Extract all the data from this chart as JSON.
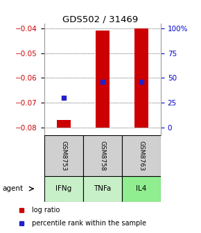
{
  "title": "GDS502 / 31469",
  "samples": [
    "GSM8753",
    "GSM8758",
    "GSM8763"
  ],
  "agents": [
    "IFNg",
    "TNFa",
    "IL4"
  ],
  "agent_colors": [
    "#c8f0c8",
    "#c8f0c8",
    "#90ee90"
  ],
  "ylim_left": [
    -0.083,
    -0.038
  ],
  "yticks_left": [
    -0.08,
    -0.07,
    -0.06,
    -0.05,
    -0.04
  ],
  "yticks_right": [
    0,
    25,
    50,
    75,
    100
  ],
  "bar_bottom": -0.08,
  "bar_tops": [
    -0.077,
    -0.041,
    -0.04
  ],
  "percentile_values": [
    0.3,
    0.46,
    0.46
  ],
  "bar_color": "#cc0000",
  "percentile_color": "#2020cc",
  "bg_color": "#ffffff",
  "plot_bg_color": "#ffffff",
  "left_label_color": "#cc0000",
  "right_label_color": "#0000cc",
  "sample_box_color": "#d0d0d0",
  "grid_color": "#000000",
  "title_color": "#000000",
  "bar_width": 0.35
}
